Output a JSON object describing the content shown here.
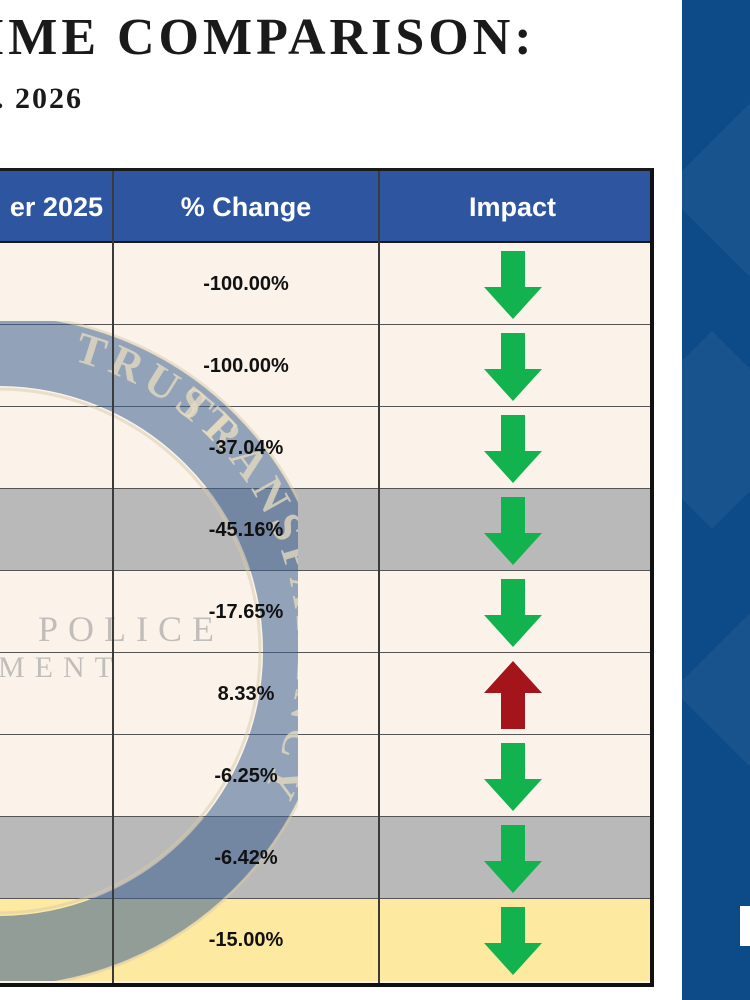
{
  "title": "IME COMPARISON:",
  "subtitle": ". 2026",
  "table": {
    "headers": [
      "er 2025",
      "% Change",
      "Impact"
    ],
    "rows": [
      {
        "change": "-100.00%",
        "impact": "down",
        "style": "light"
      },
      {
        "change": "-100.00%",
        "impact": "down",
        "style": "light"
      },
      {
        "change": "-37.04%",
        "impact": "down",
        "style": "light"
      },
      {
        "change": "-45.16%",
        "impact": "down",
        "style": "gray"
      },
      {
        "change": "-17.65%",
        "impact": "down",
        "style": "light"
      },
      {
        "change": "8.33%",
        "impact": "up",
        "style": "light"
      },
      {
        "change": "-6.25%",
        "impact": "down",
        "style": "light"
      },
      {
        "change": "-6.42%",
        "impact": "down",
        "style": "gray"
      },
      {
        "change": "-15.00%",
        "impact": "down",
        "style": "total"
      }
    ]
  },
  "watermark": {
    "seal_text": [
      "TRUST",
      "TRANSPARENCY"
    ],
    "dept_text": [
      "POLICE",
      "MENT"
    ]
  },
  "colors": {
    "header_blue": "#2e56a0",
    "down_arrow": "#12b34f",
    "up_arrow": "#a3141b",
    "side_panel": "#0d4a88",
    "total_row": "#fde9a0"
  }
}
